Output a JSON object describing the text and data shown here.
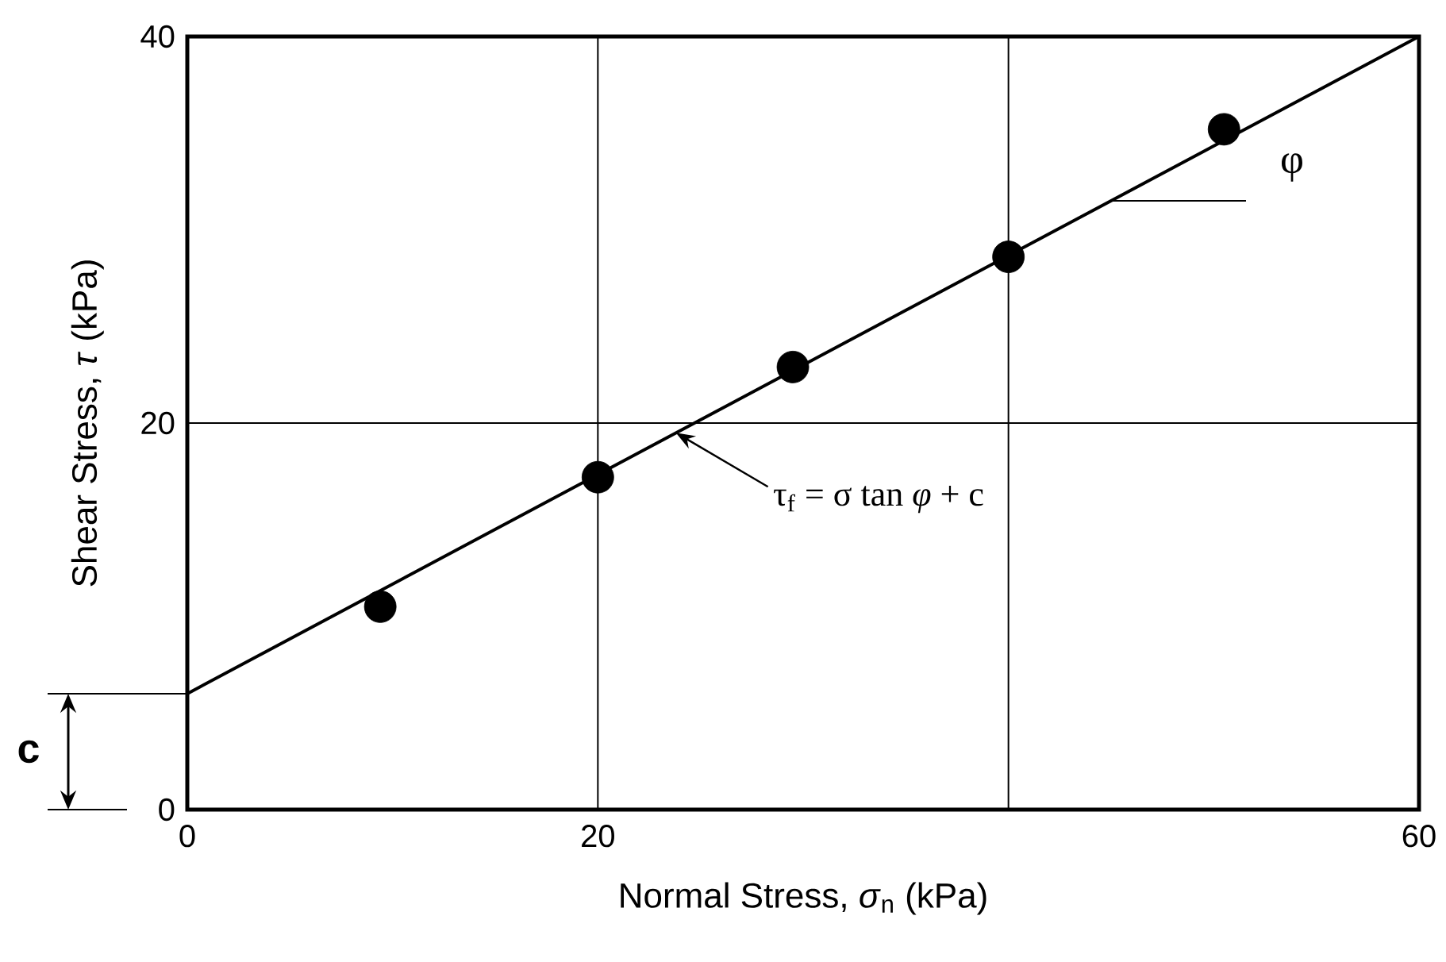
{
  "chart_data": {
    "type": "scatter",
    "xlabel": "Normal Stress, *σ*$_{n}$ (kPa)",
    "ylabel": "Shear Stress, *τ* (kPa)",
    "xlim": [
      0,
      60
    ],
    "ylim": [
      0,
      40
    ],
    "xticks": [
      0,
      20,
      {
        "value": 40,
        "label": null
      },
      60
    ],
    "yticks": [
      0,
      20,
      40
    ],
    "grid": true,
    "marker": "circle",
    "series": [
      {
        "color": "#000000",
        "x": [
          9.4,
          20,
          29.5,
          40,
          50.5
        ],
        "values": [
          10.5,
          17.2,
          22.9,
          28.6,
          35.2
        ]
      },
      {
        "type": "line",
        "color": "#000000",
        "marker": "none",
        "x": [
          0,
          60
        ],
        "values": [
          6,
          40
        ]
      }
    ],
    "annotations": [
      {
        "text": "τ$_{f}$ = σ tan *φ* + c",
        "x": 23.8,
        "y": 19.5
      },
      {
        "text": "φ",
        "x": 45,
        "y": 31.5
      },
      {
        "text": "c",
        "x": 0,
        "y": 6
      }
    ]
  }
}
